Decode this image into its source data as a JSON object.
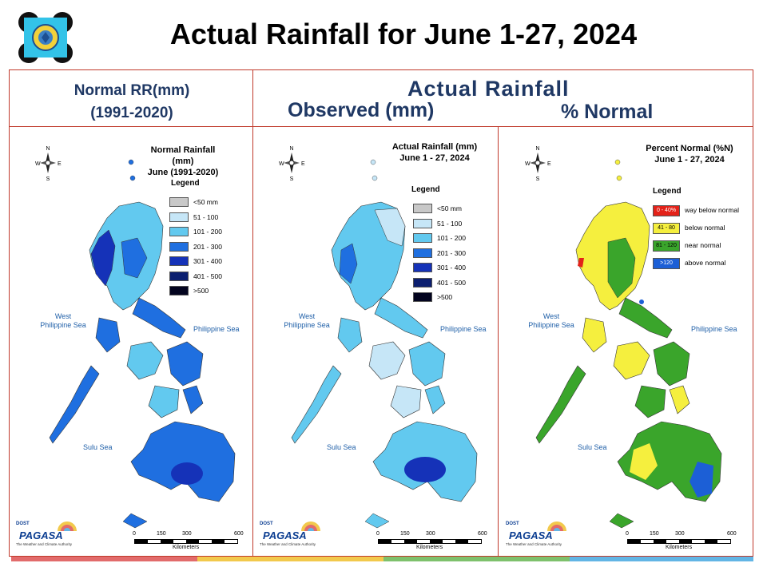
{
  "title": "Actual Rainfall for June 1-27, 2024",
  "headers": {
    "normal_line1": "Normal RR(mm)",
    "normal_line2": "(1991-2020)",
    "actual": "Actual Rainfall",
    "observed": "Observed (mm)",
    "percent": "% Normal"
  },
  "panels": [
    {
      "map_title_line1": "Normal Rainfall (mm)",
      "map_title_line2": "June (1991-2020)",
      "legend_title": "Legend",
      "legend": [
        {
          "label": "<50 mm",
          "color": "#c8c8c8"
        },
        {
          "label": "51 - 100",
          "color": "#c6e6f7"
        },
        {
          "label": "101 - 200",
          "color": "#62c9ef"
        },
        {
          "label": "201 - 300",
          "color": "#1f6fe0"
        },
        {
          "label": "301 - 400",
          "color": "#1532b8"
        },
        {
          "label": "401 - 500",
          "color": "#0c1f70"
        },
        {
          "label": ">500",
          "color": "#03041f"
        }
      ]
    },
    {
      "map_title_line1": "Actual Rainfall (mm)",
      "map_title_line2": "June 1 - 27, 2024",
      "legend_title": "Legend",
      "legend": [
        {
          "label": "<50 mm",
          "color": "#c8c8c8"
        },
        {
          "label": "51 - 100",
          "color": "#c6e6f7"
        },
        {
          "label": "101 - 200",
          "color": "#62c9ef"
        },
        {
          "label": "201 - 300",
          "color": "#1f6fe0"
        },
        {
          "label": "301 - 400",
          "color": "#1532b8"
        },
        {
          "label": "401 - 500",
          "color": "#0c1f70"
        },
        {
          "label": ">500",
          "color": "#03041f"
        }
      ]
    },
    {
      "map_title_line1": "Percent Normal (%N)",
      "map_title_line2": "June 1 - 27, 2024",
      "legend_title": "Legend",
      "legend": [
        {
          "swatch": "0 - 40%",
          "label": "way below normal",
          "color": "#e32219",
          "text_color": "#ffffff"
        },
        {
          "swatch": "41 - 80",
          "label": "below normal",
          "color": "#f5ef3e",
          "text_color": "#000000"
        },
        {
          "swatch": "81 - 120",
          "label": "near normal",
          "color": "#3aa52b",
          "text_color": "#000000"
        },
        {
          "swatch": ">120",
          "label": "above normal",
          "color": "#1c5fd6",
          "text_color": "#ffffff"
        }
      ]
    }
  ],
  "seas": {
    "west_line1": "West",
    "west_line2": "Philippine Sea",
    "east": "Philippine Sea",
    "sulu": "Sulu Sea"
  },
  "compass": {
    "n": "N",
    "s": "S",
    "e": "E",
    "w": "W"
  },
  "scale": {
    "ticks": [
      "0",
      "150",
      "300",
      "600"
    ],
    "unit": "Kilometers"
  },
  "pagasa": {
    "name": "PAGASA",
    "top": "DOST",
    "tagline": "The Weather and Climate Authority"
  },
  "colors": {
    "frame": "#c0392b",
    "header_text": "#1f3864",
    "footer": [
      "#e26b6b",
      "#f2c94c",
      "#7ec16c",
      "#62b5e5"
    ]
  }
}
